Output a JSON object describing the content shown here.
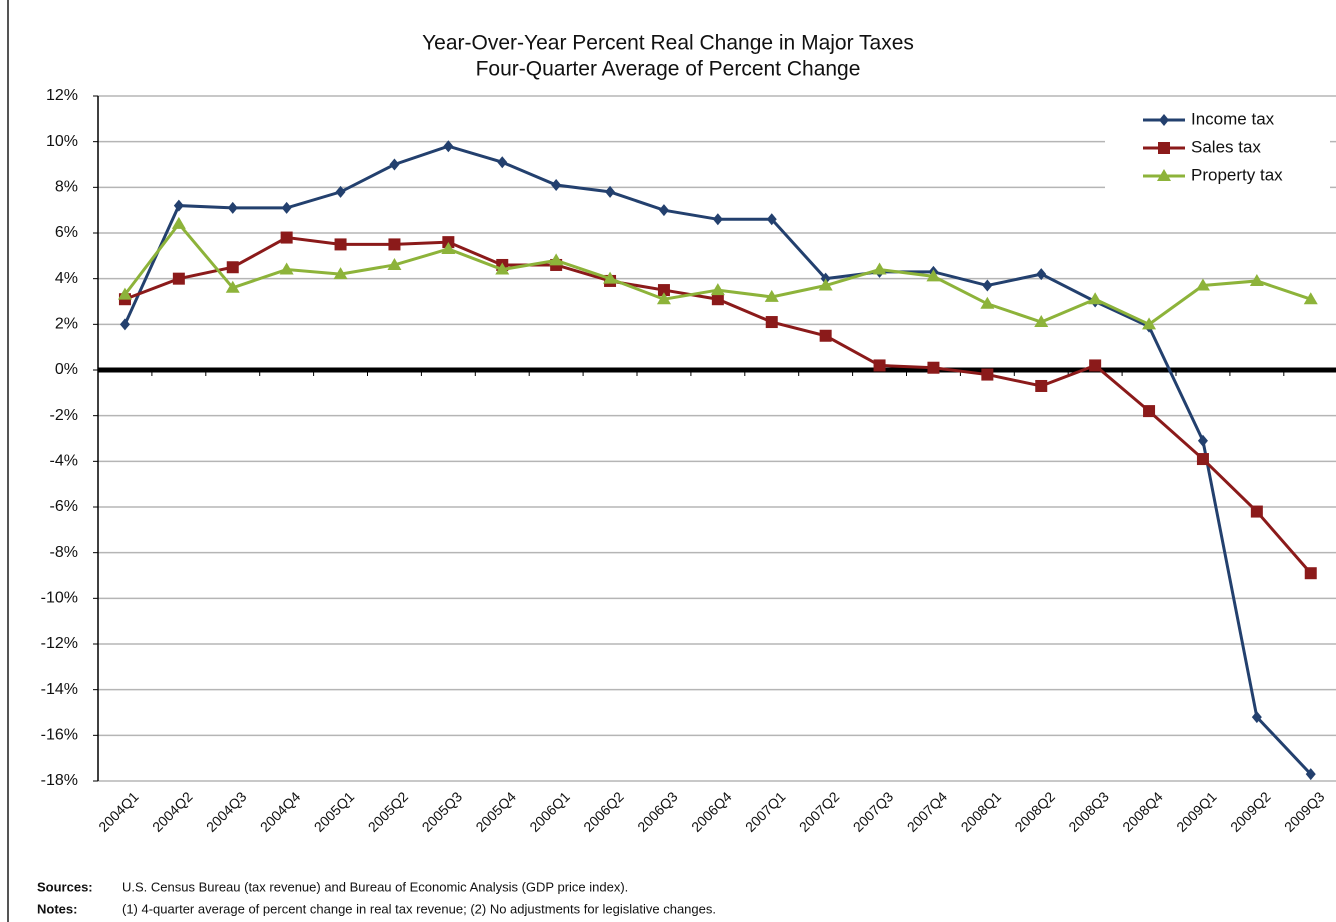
{
  "chart_data": {
    "type": "line",
    "title": "Year-Over-Year Percent Real Change in Major Taxes",
    "subtitle": "Four-Quarter Average of Percent Change",
    "categories": [
      "2004Q1",
      "2004Q2",
      "2004Q3",
      "2004Q4",
      "2005Q1",
      "2005Q2",
      "2005Q3",
      "2005Q4",
      "2006Q1",
      "2006Q2",
      "2006Q3",
      "2006Q4",
      "2007Q1",
      "2007Q2",
      "2007Q3",
      "2007Q4",
      "2008Q1",
      "2008Q2",
      "2008Q3",
      "2008Q4",
      "2009Q1",
      "2009Q2",
      "2009Q3"
    ],
    "series": [
      {
        "name": "Income tax",
        "color": "#23406e",
        "marker": "diamond",
        "values": [
          2.0,
          7.2,
          7.1,
          7.1,
          7.8,
          9.0,
          9.8,
          9.1,
          8.1,
          7.8,
          7.0,
          6.6,
          6.6,
          4.0,
          4.3,
          4.3,
          3.7,
          4.2,
          3.0,
          1.9,
          -3.1,
          -15.2,
          -17.7
        ]
      },
      {
        "name": "Sales tax",
        "color": "#8b1a1a",
        "marker": "square",
        "values": [
          3.1,
          4.0,
          4.5,
          5.8,
          5.5,
          5.5,
          5.6,
          4.6,
          4.6,
          3.9,
          3.5,
          3.1,
          2.1,
          1.5,
          0.2,
          0.1,
          -0.2,
          -0.7,
          0.2,
          -1.8,
          -3.9,
          -6.2,
          -8.9
        ]
      },
      {
        "name": "Property tax",
        "color": "#8db33a",
        "marker": "triangle",
        "values": [
          3.3,
          6.4,
          3.6,
          4.4,
          4.2,
          4.6,
          5.3,
          4.4,
          4.8,
          4.0,
          3.1,
          3.5,
          3.2,
          3.7,
          4.4,
          4.1,
          2.9,
          2.1,
          3.1,
          2.0,
          3.7,
          3.9,
          3.1
        ]
      }
    ],
    "ylim": [
      -18,
      12
    ],
    "yticks": [
      {
        "value": -18,
        "label": "-18%"
      },
      {
        "value": -16,
        "label": "-16%"
      },
      {
        "value": -14,
        "label": "-14%"
      },
      {
        "value": -12,
        "label": "-12%"
      },
      {
        "value": -10,
        "label": "-10%"
      },
      {
        "value": -8,
        "label": "-8%"
      },
      {
        "value": -6,
        "label": "-6%"
      },
      {
        "value": -4,
        "label": "-4%"
      },
      {
        "value": -2,
        "label": "-2%"
      },
      {
        "value": 0,
        "label": "0%"
      },
      {
        "value": 2,
        "label": "2%"
      },
      {
        "value": 4,
        "label": "4%"
      },
      {
        "value": 6,
        "label": "6%"
      },
      {
        "value": 8,
        "label": "8%"
      },
      {
        "value": 10,
        "label": "10%"
      },
      {
        "value": 12,
        "label": "12%"
      }
    ],
    "grid": true,
    "legend": "top-right",
    "sources_label": "Sources:",
    "sources": "U.S. Census Bureau (tax revenue) and Bureau of Economic Analysis (GDP price index).",
    "notes_label": "Notes:",
    "notes": "(1) 4-quarter average of percent change in real tax revenue; (2) No adjustments for legislative changes."
  }
}
